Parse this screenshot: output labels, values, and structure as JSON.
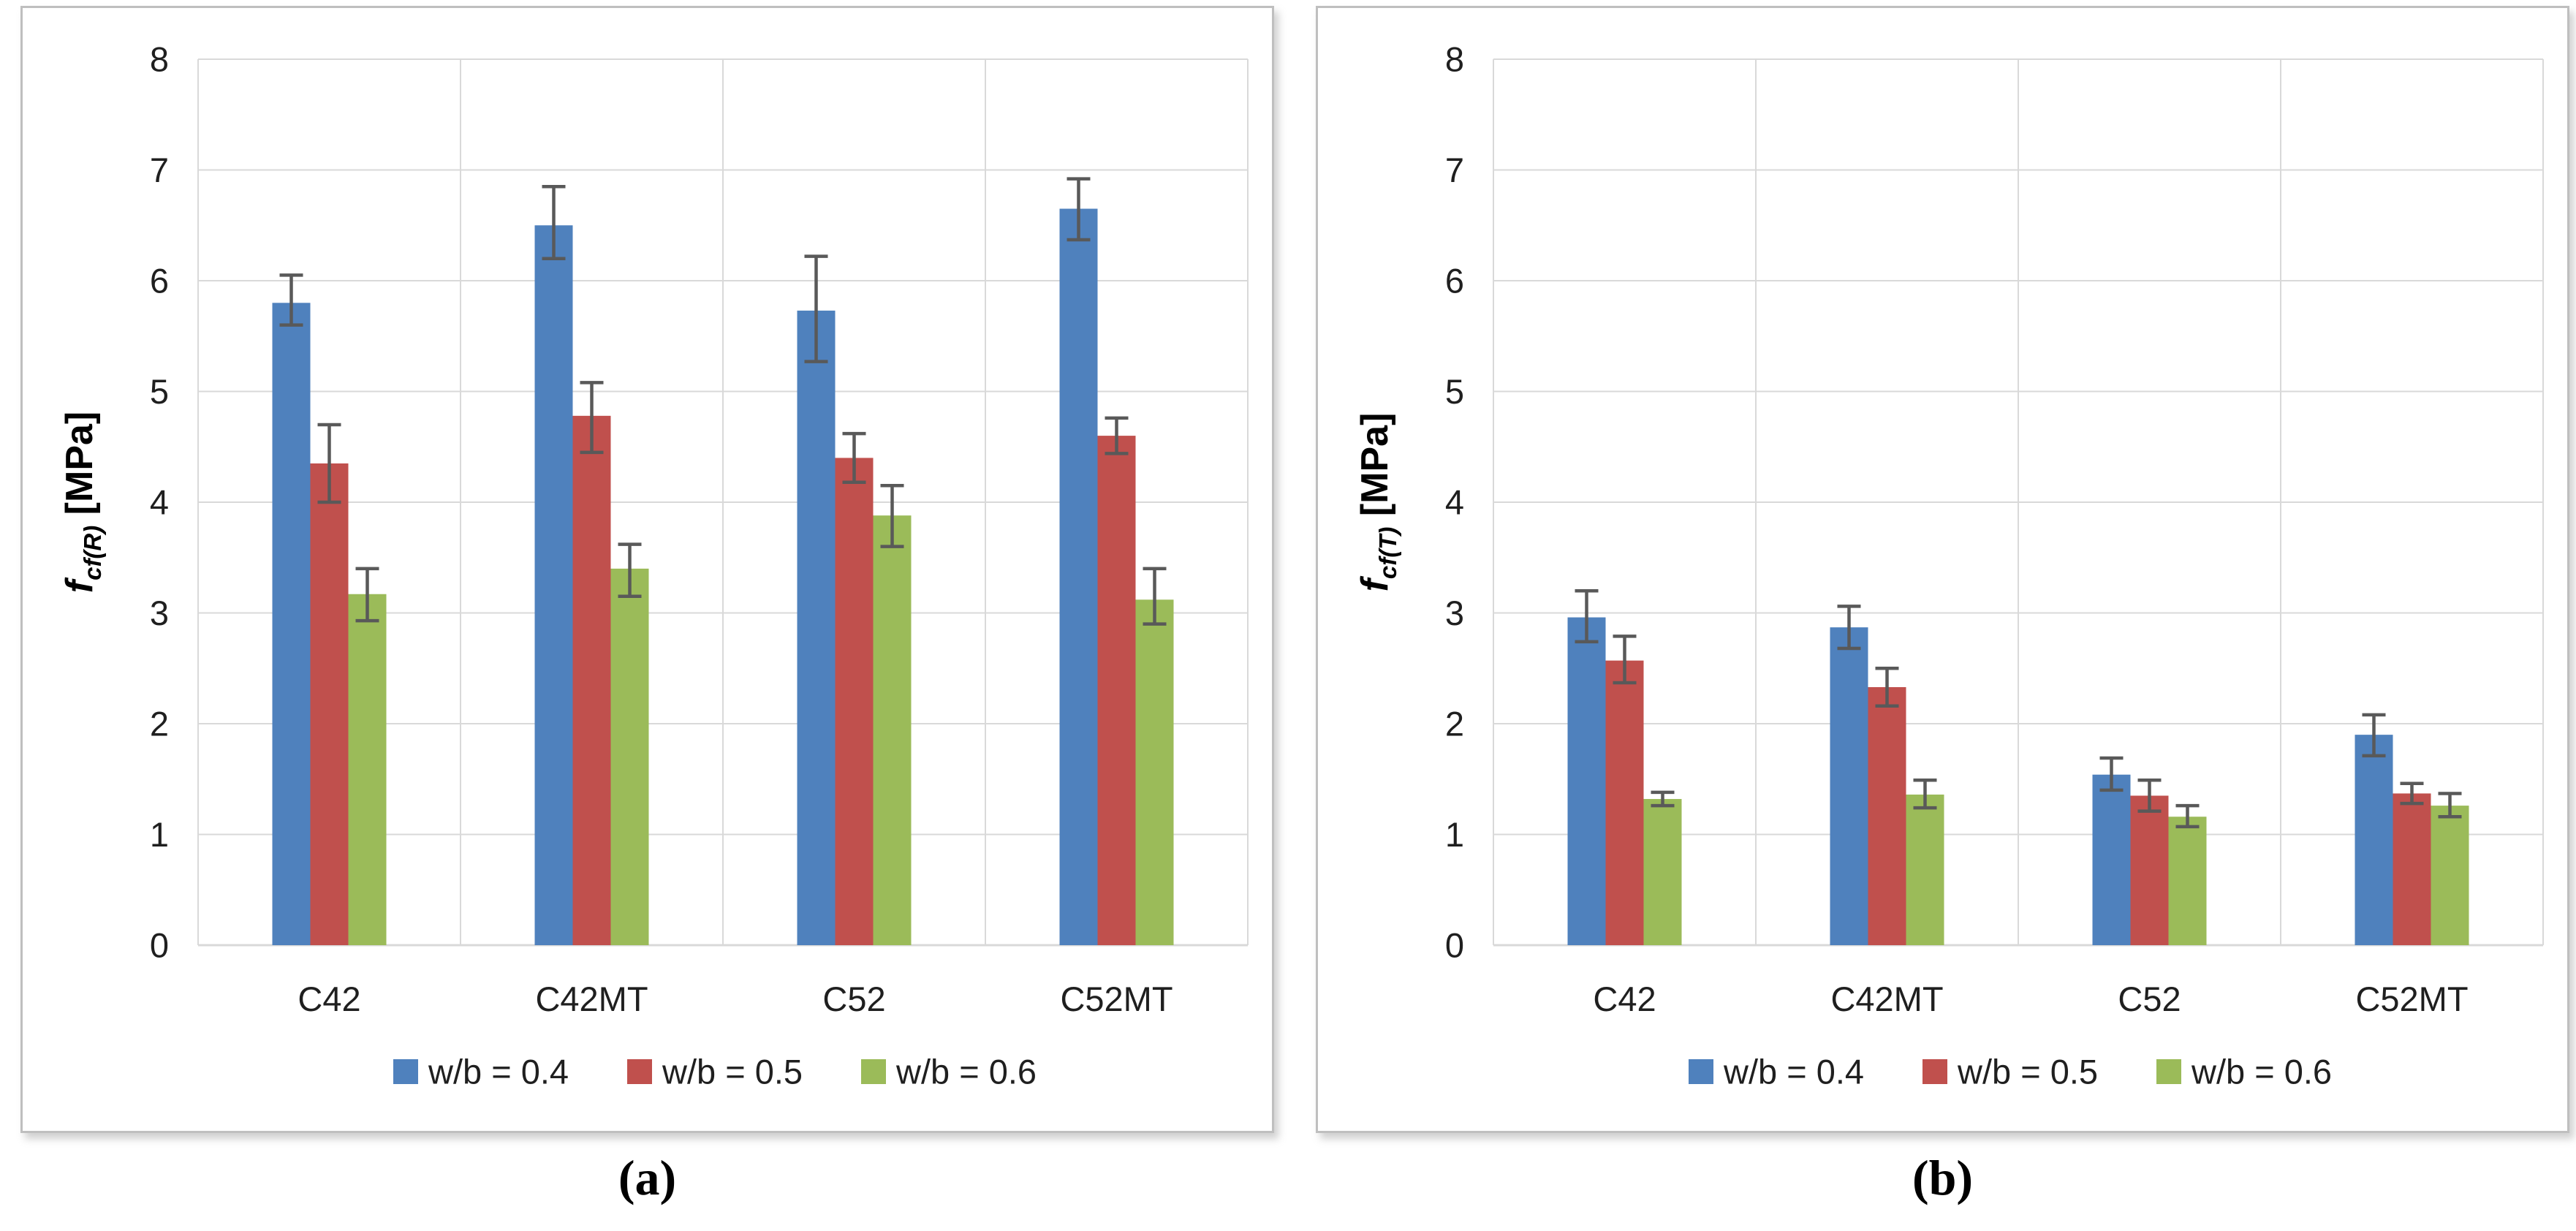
{
  "figure": {
    "captions": {
      "a": "(a)",
      "b": "(b)"
    }
  },
  "palette": {
    "blue": "#4F81BD",
    "red": "#C0504D",
    "green": "#9BBB59",
    "error_bar": "#595959",
    "gridline": "#D9D9D9",
    "panel_border": "#BFBFBF",
    "text": "#1F1F1F"
  },
  "legend_labels": [
    "w/b = 0.4",
    "w/b = 0.5",
    "w/b = 0.6"
  ],
  "chart_data": [
    {
      "id": "a",
      "type": "bar",
      "title": "",
      "ylabel": {
        "prefix": "f",
        "sub": "cf(R)",
        "suffix": " [MPa]"
      },
      "ylim": [
        0,
        8
      ],
      "yticks": [
        0,
        1,
        2,
        3,
        4,
        5,
        6,
        7,
        8
      ],
      "grid": true,
      "legend_position": "bottom",
      "categories": [
        "C42",
        "C42MT",
        "C52",
        "C52MT"
      ],
      "series": [
        {
          "name": "w/b = 0.4",
          "color_key": "blue",
          "values": [
            5.8,
            6.5,
            5.73,
            6.65
          ],
          "err_lo": [
            5.6,
            6.2,
            5.27,
            6.37
          ],
          "err_hi": [
            6.05,
            6.85,
            6.22,
            6.92
          ]
        },
        {
          "name": "w/b = 0.5",
          "color_key": "red",
          "values": [
            4.35,
            4.78,
            4.4,
            4.6
          ],
          "err_lo": [
            4.0,
            4.45,
            4.18,
            4.44
          ],
          "err_hi": [
            4.7,
            5.08,
            4.62,
            4.76
          ]
        },
        {
          "name": "w/b = 0.6",
          "color_key": "green",
          "values": [
            3.17,
            3.4,
            3.88,
            3.12
          ],
          "err_lo": [
            2.93,
            3.15,
            3.6,
            2.9
          ],
          "err_hi": [
            3.4,
            3.62,
            4.15,
            3.4
          ]
        }
      ]
    },
    {
      "id": "b",
      "type": "bar",
      "title": "",
      "ylabel": {
        "prefix": "f",
        "sub": "cf(T)",
        "suffix": " [MPa]"
      },
      "ylim": [
        0,
        8
      ],
      "yticks": [
        0,
        1,
        2,
        3,
        4,
        5,
        6,
        7,
        8
      ],
      "grid": true,
      "legend_position": "bottom",
      "categories": [
        "C42",
        "C42MT",
        "C52",
        "C52MT"
      ],
      "series": [
        {
          "name": "w/b = 0.4",
          "color_key": "blue",
          "values": [
            2.96,
            2.87,
            1.54,
            1.9
          ],
          "err_lo": [
            2.74,
            2.68,
            1.4,
            1.71
          ],
          "err_hi": [
            3.2,
            3.06,
            1.69,
            2.08
          ]
        },
        {
          "name": "w/b = 0.5",
          "color_key": "red",
          "values": [
            2.57,
            2.33,
            1.35,
            1.37
          ],
          "err_lo": [
            2.37,
            2.16,
            1.21,
            1.28
          ],
          "err_hi": [
            2.79,
            2.5,
            1.49,
            1.46
          ]
        },
        {
          "name": "w/b = 0.6",
          "color_key": "green",
          "values": [
            1.32,
            1.36,
            1.16,
            1.26
          ],
          "err_lo": [
            1.26,
            1.24,
            1.07,
            1.16
          ],
          "err_hi": [
            1.38,
            1.49,
            1.26,
            1.37
          ]
        }
      ]
    }
  ]
}
